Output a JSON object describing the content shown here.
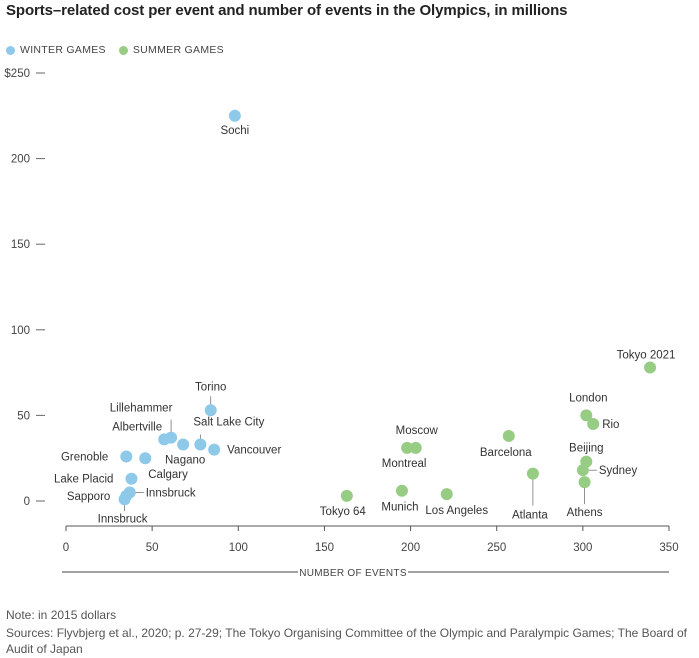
{
  "chart_data": {
    "type": "scatter",
    "title": "Sports–related cost per event and number of events in the Olympics, in millions",
    "xlabel": "NUMBER OF EVENTS",
    "ylabel": "",
    "xlim": [
      0,
      350
    ],
    "ylim": [
      0,
      250
    ],
    "x_ticks": [
      "0",
      "50",
      "100",
      "150",
      "200",
      "250",
      "300",
      "350"
    ],
    "y_ticks": [
      "0",
      "50",
      "100",
      "150",
      "200",
      "$250"
    ],
    "legend_position": "top-left",
    "series": [
      {
        "name": "WINTER GAMES",
        "color": "#8fc9ea",
        "points": [
          {
            "label": "Sochi",
            "x": 98,
            "y": 225
          },
          {
            "label": "Torino",
            "x": 84,
            "y": 53
          },
          {
            "label": "Lillehammer",
            "x": 61,
            "y": 37
          },
          {
            "label": "Albertville",
            "x": 57,
            "y": 36
          },
          {
            "label": "Salt Lake City",
            "x": 78,
            "y": 33
          },
          {
            "label": "Nagano",
            "x": 68,
            "y": 33
          },
          {
            "label": "Vancouver",
            "x": 86,
            "y": 30
          },
          {
            "label": "Grenoble",
            "x": 35,
            "y": 26
          },
          {
            "label": "Calgary",
            "x": 46,
            "y": 25
          },
          {
            "label": "Lake Placid",
            "x": 38,
            "y": 13
          },
          {
            "label": "Sapporo",
            "x": 35,
            "y": 3
          },
          {
            "label": "Innsbruck",
            "x": 37,
            "y": 5
          },
          {
            "label": "Innsbruck",
            "x": 34,
            "y": 1
          }
        ]
      },
      {
        "name": "SUMMER GAMES",
        "color": "#97cc85",
        "points": [
          {
            "label": "Tokyo 2021",
            "x": 339,
            "y": 78
          },
          {
            "label": "London",
            "x": 302,
            "y": 50
          },
          {
            "label": "Rio",
            "x": 306,
            "y": 45
          },
          {
            "label": "Moscow",
            "x": 203,
            "y": 31
          },
          {
            "label": "Montreal",
            "x": 198,
            "y": 31
          },
          {
            "label": "Barcelona",
            "x": 257,
            "y": 38
          },
          {
            "label": "Beijing",
            "x": 302,
            "y": 23
          },
          {
            "label": "Sydney",
            "x": 300,
            "y": 18
          },
          {
            "label": "Athens",
            "x": 301,
            "y": 11
          },
          {
            "label": "Atlanta",
            "x": 271,
            "y": 16
          },
          {
            "label": "Tokyo 64",
            "x": 163,
            "y": 3
          },
          {
            "label": "Munich",
            "x": 195,
            "y": 6
          },
          {
            "label": "Los Angeles",
            "x": 221,
            "y": 4
          }
        ]
      }
    ]
  },
  "note": "Note: in 2015 dollars",
  "sources": "Sources: Flyvbjerg et al., 2020; p. 27-29; The Tokyo Organising Committee of the Olympic and Paralympic Games; The Board of Audit of Japan"
}
